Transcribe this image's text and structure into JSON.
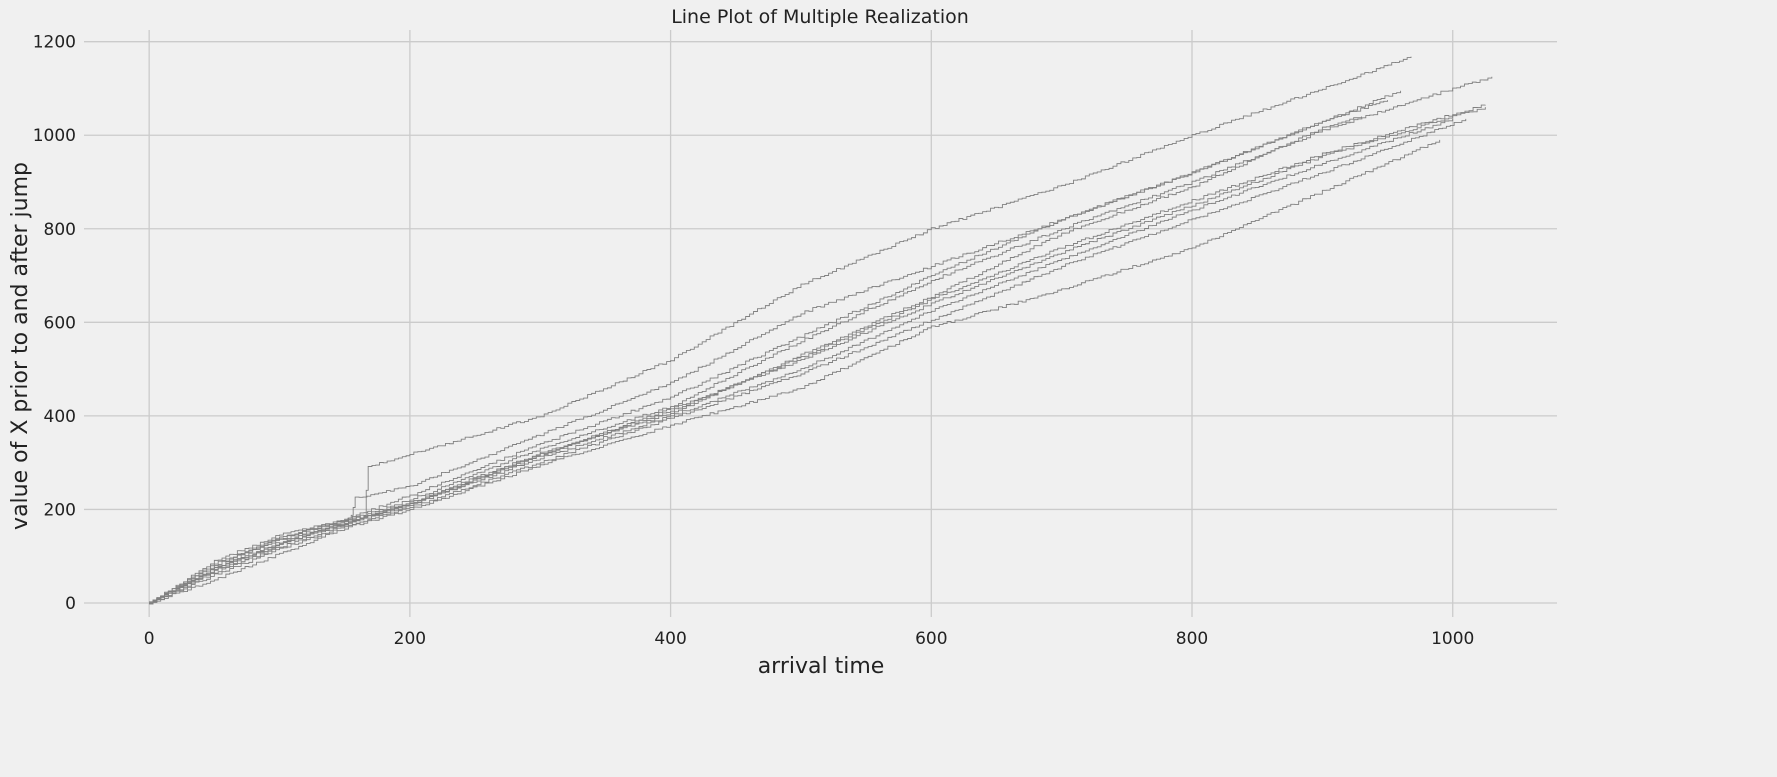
{
  "chart_data": {
    "type": "line",
    "title": "Line Plot of Multiple Realization",
    "xlabel": "arrival time",
    "ylabel": "value of X prior to and after jump",
    "xlim": [
      -50,
      1080
    ],
    "ylim": [
      -30,
      1225
    ],
    "x_ticks": [
      0,
      200,
      400,
      600,
      800,
      1000
    ],
    "x_tick_labels": [
      "0",
      "200",
      "400",
      "600",
      "800",
      "1000"
    ],
    "y_ticks": [
      0,
      200,
      400,
      600,
      800,
      1000,
      1200
    ],
    "y_tick_labels": [
      "0",
      "200",
      "400",
      "600",
      "800",
      "1000",
      "1200"
    ],
    "grid": true,
    "legend": "none",
    "line_color": "#808080",
    "background_color": "#f0f0f0",
    "grid_color": "#cbcbcb",
    "series": [
      {
        "x": [
          0,
          50,
          100,
          150,
          165,
          168,
          200,
          300,
          400,
          500,
          600,
          700,
          800,
          900,
          968
        ],
        "y": [
          0,
          75,
          138,
          180,
          185,
          292,
          318,
          400,
          520,
          680,
          800,
          892,
          1000,
          1100,
          1168
        ]
      },
      {
        "x": [
          0,
          50,
          100,
          150,
          200,
          300,
          400,
          500,
          600,
          700,
          800,
          900,
          1000,
          1030
        ],
        "y": [
          0,
          85,
          135,
          175,
          220,
          330,
          420,
          560,
          690,
          800,
          900,
          1010,
          1100,
          1125
        ]
      },
      {
        "x": [
          0,
          50,
          100,
          150,
          155,
          158,
          200,
          300,
          400,
          500,
          600,
          700,
          800,
          900,
          960
        ],
        "y": [
          0,
          80,
          140,
          178,
          185,
          225,
          250,
          360,
          470,
          620,
          720,
          820,
          920,
          1030,
          1095
        ]
      },
      {
        "x": [
          0,
          50,
          100,
          150,
          200,
          300,
          400,
          500,
          600,
          700,
          800,
          900,
          1000,
          1025
        ],
        "y": [
          0,
          70,
          125,
          170,
          215,
          320,
          410,
          525,
          650,
          760,
          860,
          960,
          1045,
          1065
        ]
      },
      {
        "x": [
          0,
          50,
          100,
          150,
          200,
          300,
          400,
          500,
          600,
          700,
          800,
          900,
          1000
        ],
        "y": [
          0,
          65,
          120,
          168,
          210,
          310,
          400,
          500,
          625,
          735,
          840,
          940,
          1035
        ]
      },
      {
        "x": [
          0,
          50,
          100,
          150,
          200,
          300,
          400,
          500,
          600,
          700,
          800,
          900,
          1000,
          1025
        ],
        "y": [
          0,
          75,
          130,
          172,
          210,
          315,
          415,
          520,
          640,
          750,
          850,
          955,
          1040,
          1060
        ]
      },
      {
        "x": [
          0,
          50,
          100,
          150,
          200,
          300,
          400,
          500,
          600,
          700,
          800,
          900,
          1010
        ],
        "y": [
          0,
          60,
          115,
          165,
          205,
          300,
          395,
          490,
          605,
          720,
          820,
          920,
          1035
        ]
      },
      {
        "x": [
          0,
          50,
          100,
          150,
          200,
          300,
          400,
          500,
          600,
          700,
          800,
          900,
          990
        ],
        "y": [
          0,
          50,
          105,
          160,
          200,
          295,
          380,
          460,
          590,
          670,
          760,
          880,
          990
        ]
      },
      {
        "x": [
          0,
          50,
          100,
          150,
          200,
          300,
          400,
          500,
          600,
          700,
          800,
          900,
          950
        ],
        "y": [
          0,
          90,
          145,
          178,
          230,
          340,
          440,
          570,
          700,
          820,
          920,
          1030,
          1075
        ]
      },
      {
        "x": [
          0,
          50,
          100,
          150,
          200,
          300,
          400,
          500,
          600,
          700,
          800,
          900,
          930
        ],
        "y": [
          0,
          72,
          128,
          170,
          212,
          318,
          405,
          530,
          655,
          790,
          890,
          1015,
          1040
        ]
      }
    ]
  }
}
